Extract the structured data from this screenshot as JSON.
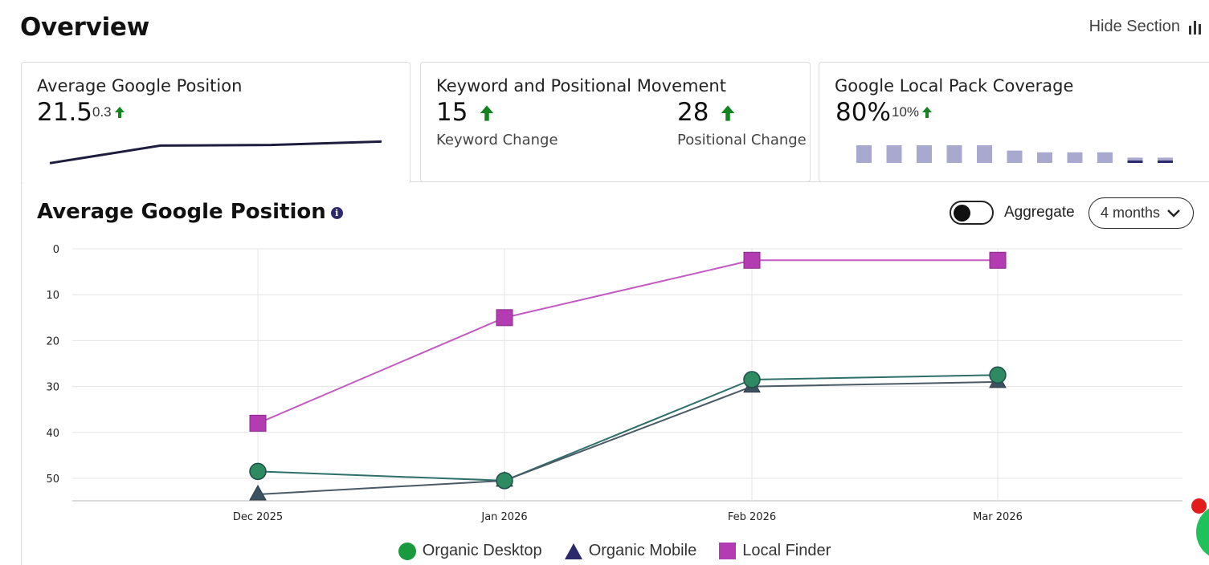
{
  "header": {
    "title": "Overview",
    "hide_section_label": "Hide Section"
  },
  "cards": {
    "avg_position": {
      "title": "Average Google Position",
      "value": "21.5",
      "delta": "0.3",
      "trend": [
        51,
        38,
        37.5,
        35
      ]
    },
    "keyword_movement": {
      "title": "Keyword and Positional Movement",
      "keyword_value": "15",
      "keyword_label": "Keyword Change",
      "positional_value": "28",
      "positional_label": "Positional Change"
    },
    "local_pack": {
      "title": "Google Local Pack Coverage",
      "value": "80%",
      "delta": "10%",
      "bars": [
        1,
        1,
        1,
        1,
        1,
        0.7,
        0.6,
        0.6,
        0.6,
        0.3,
        0.3
      ]
    }
  },
  "chart_section": {
    "title": "Average Google Position",
    "info_icon": "info-icon",
    "aggregate_label": "Aggregate",
    "aggregate_on": false,
    "range_label": "4 months"
  },
  "chart_data": {
    "type": "line",
    "x": [
      "Dec 2025",
      "Jan 2026",
      "Feb 2026",
      "Mar 2026"
    ],
    "y_ticks": [
      "0",
      "10",
      "20",
      "30",
      "40",
      "50"
    ],
    "ylim": [
      0,
      55
    ],
    "y_inverted": true,
    "series": [
      {
        "name": "Organic Desktop",
        "values": [
          48.5,
          50.5,
          28.5,
          27.5
        ],
        "color": "#1a9a3e",
        "marker": "circle"
      },
      {
        "name": "Organic Mobile",
        "values": [
          53.5,
          50.5,
          30,
          29
        ],
        "color": "#2c2a6b",
        "marker": "triangle"
      },
      {
        "name": "Local Finder",
        "values": [
          38,
          15,
          2.5,
          2.5
        ],
        "color": "#b43cb3",
        "marker": "square"
      }
    ],
    "grid": true,
    "legend": "bottom"
  },
  "colors": {
    "up_arrow": "#13841f",
    "desktop_line": "#2e6f6a",
    "mobile_line": "#4a5a66",
    "local_line": "#c45bc3"
  }
}
